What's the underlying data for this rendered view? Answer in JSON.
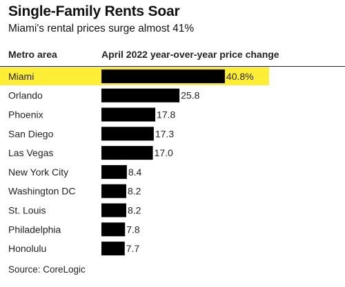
{
  "title": "Single-Family Rents Soar",
  "subtitle": "Miami's rental prices surge almost 41%",
  "columns": {
    "metro": "Metro area",
    "change": "April 2022 year-over-year price change"
  },
  "source": "Source: CoreLogic",
  "colors": {
    "bar": "#000000",
    "highlight": "#ffee33",
    "text": "#111111"
  },
  "chart_data": {
    "type": "bar",
    "orientation": "horizontal",
    "categories": [
      "Miami",
      "Orlando",
      "Phoenix",
      "San Diego",
      "Las Vegas",
      "New York City",
      "Washington DC",
      "St. Louis",
      "Philadelphia",
      "Honolulu"
    ],
    "values": [
      40.8,
      25.8,
      17.8,
      17.3,
      17.0,
      8.4,
      8.2,
      8.2,
      7.8,
      7.7
    ],
    "value_labels": [
      "40.8%",
      "25.8",
      "17.8",
      "17.3",
      "17.0",
      "8.4",
      "8.2",
      "8.2",
      "7.8",
      "7.7"
    ],
    "highlighted": "Miami",
    "grid": false
  }
}
